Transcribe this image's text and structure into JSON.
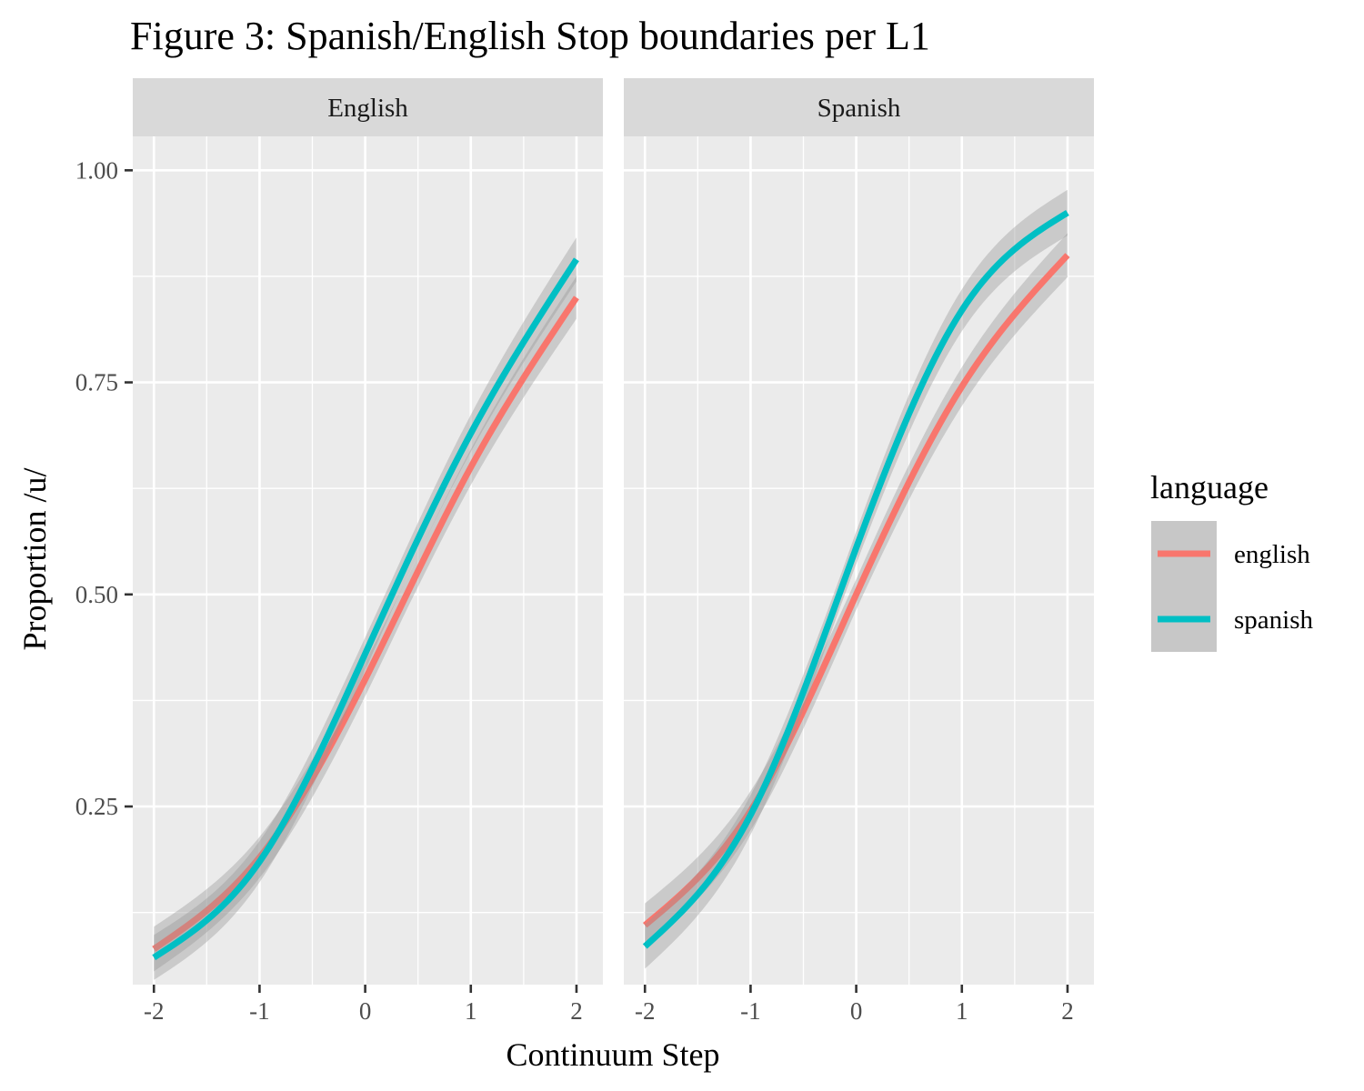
{
  "chart_data": {
    "type": "line",
    "title": "Figure 3: Spanish/English Stop boundaries per L1",
    "xlabel": "Continuum Step",
    "ylabel": "Proportion /u/",
    "xlim": [
      -2.2,
      2.25
    ],
    "ylim": [
      0.04,
      1.04
    ],
    "x_ticks": [
      "-2",
      "-1",
      "0",
      "1",
      "2"
    ],
    "x_tick_values": [
      -2,
      -1,
      0,
      1,
      2
    ],
    "y_ticks": [
      "0.25",
      "0.50",
      "0.75",
      "1.00"
    ],
    "y_tick_values": [
      0.25,
      0.5,
      0.75,
      1.0
    ],
    "grid": true,
    "confidence_band": true,
    "legend": {
      "title": "language",
      "placement": "right",
      "entries": [
        {
          "label": "english",
          "color": "#F8766D"
        },
        {
          "label": "spanish",
          "color": "#00BFC4"
        }
      ]
    },
    "panels": [
      {
        "strip": "English",
        "series": [
          {
            "name": "english",
            "color": "#F8766D",
            "x": [
              -2,
              -1,
              0,
              1,
              2
            ],
            "y": [
              0.082,
              0.19,
              0.4,
              0.65,
              0.85
            ]
          },
          {
            "name": "spanish",
            "color": "#00BFC4",
            "x": [
              -2,
              -1,
              0,
              1,
              2
            ],
            "y": [
              0.072,
              0.185,
              0.43,
              0.69,
              0.895
            ]
          }
        ]
      },
      {
        "strip": "Spanish",
        "series": [
          {
            "name": "english",
            "color": "#F8766D",
            "x": [
              -2,
              -1,
              0,
              1,
              2
            ],
            "y": [
              0.11,
              0.245,
              0.5,
              0.745,
              0.9
            ]
          },
          {
            "name": "spanish",
            "color": "#00BFC4",
            "x": [
              -2,
              -1,
              0,
              1,
              2
            ],
            "y": [
              0.085,
              0.24,
              0.555,
              0.835,
              0.95
            ]
          }
        ]
      }
    ]
  }
}
